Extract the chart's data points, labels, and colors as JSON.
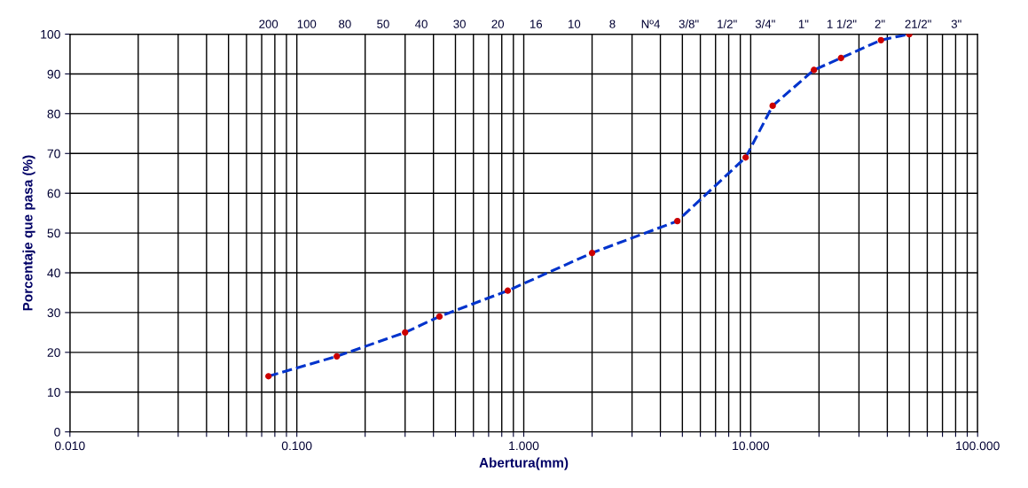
{
  "chart_data": {
    "type": "line",
    "xlabel": "Abertura(mm)",
    "ylabel": "Porcentaje que pasa (%)",
    "log": "x",
    "grid": true,
    "xlim": [
      0.01,
      100
    ],
    "ylim": [
      0,
      100
    ],
    "xticks": [
      {
        "value": 0.01,
        "label": "0.010"
      },
      {
        "value": 0.02,
        "label": null
      },
      {
        "value": 0.03,
        "label": null
      },
      {
        "value": 0.04,
        "label": null
      },
      {
        "value": 0.05,
        "label": null
      },
      {
        "value": 0.06,
        "label": null
      },
      {
        "value": 0.07,
        "label": null
      },
      {
        "value": 0.08,
        "label": null
      },
      {
        "value": 0.09,
        "label": null
      },
      {
        "value": 0.1,
        "label": "0.100"
      },
      {
        "value": 0.2,
        "label": null
      },
      {
        "value": 0.3,
        "label": null
      },
      {
        "value": 0.4,
        "label": null
      },
      {
        "value": 0.5,
        "label": null
      },
      {
        "value": 0.6,
        "label": null
      },
      {
        "value": 0.7,
        "label": null
      },
      {
        "value": 0.8,
        "label": null
      },
      {
        "value": 0.9,
        "label": null
      },
      {
        "value": 1,
        "label": "1.000"
      },
      {
        "value": 2,
        "label": null
      },
      {
        "value": 3,
        "label": null
      },
      {
        "value": 4,
        "label": null
      },
      {
        "value": 5,
        "label": null
      },
      {
        "value": 6,
        "label": null
      },
      {
        "value": 7,
        "label": null
      },
      {
        "value": 8,
        "label": null
      },
      {
        "value": 9,
        "label": null
      },
      {
        "value": 10,
        "label": "10.000"
      },
      {
        "value": 20,
        "label": null
      },
      {
        "value": 30,
        "label": null
      },
      {
        "value": 40,
        "label": null
      },
      {
        "value": 50,
        "label": null
      },
      {
        "value": 60,
        "label": null
      },
      {
        "value": 70,
        "label": null
      },
      {
        "value": 80,
        "label": null
      },
      {
        "value": 90,
        "label": null
      },
      {
        "value": 100,
        "label": "100.000"
      }
    ],
    "yticks": [
      0,
      10,
      20,
      30,
      40,
      50,
      60,
      70,
      80,
      90,
      100
    ],
    "annotations": [
      "200",
      "100",
      "80",
      "50",
      "40",
      "30",
      "20",
      "16",
      "10",
      "8",
      "Nº4",
      "3/8\"",
      "1/2\"",
      "3/4\"",
      "1\"",
      "1 1/2\"",
      "2\"",
      "21/2\"",
      "3\""
    ],
    "series": [
      {
        "line_style": "dashed",
        "marker": "none",
        "color": "#0033cc",
        "x": [
          0.075,
          0.15,
          0.3,
          0.425,
          0.85,
          2.0,
          4.75,
          9.5,
          12.5,
          19,
          25,
          37.5,
          50
        ],
        "values": [
          14,
          19,
          25,
          29,
          35.5,
          45,
          53,
          69,
          82,
          91,
          94,
          98.5,
          100
        ]
      },
      {
        "type": "scatter",
        "marker": "circle",
        "color": "#cc0000",
        "x": [
          0.075,
          0.15,
          0.3,
          0.425,
          0.85,
          2.0,
          4.75,
          9.5,
          12.5,
          19,
          25,
          37.5,
          50
        ],
        "values": [
          14,
          19,
          25,
          29,
          35.5,
          45,
          53,
          69,
          82,
          91,
          94,
          98.5,
          100
        ]
      }
    ]
  }
}
